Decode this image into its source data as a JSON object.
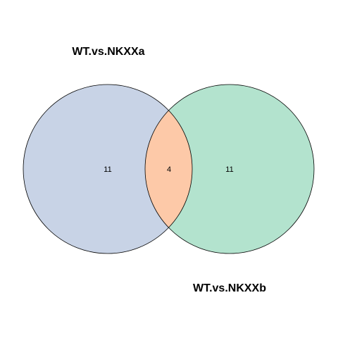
{
  "sets": [
    {
      "name": "WT.vs.NKXXa",
      "color": "#c8d3e6"
    },
    {
      "name": "WT.vs.NKXXb",
      "color": "#b3e3ce"
    }
  ],
  "intersection_color": "#fdc9a8",
  "counts": {
    "a_only": "11",
    "both": "4",
    "b_only": "11"
  }
}
